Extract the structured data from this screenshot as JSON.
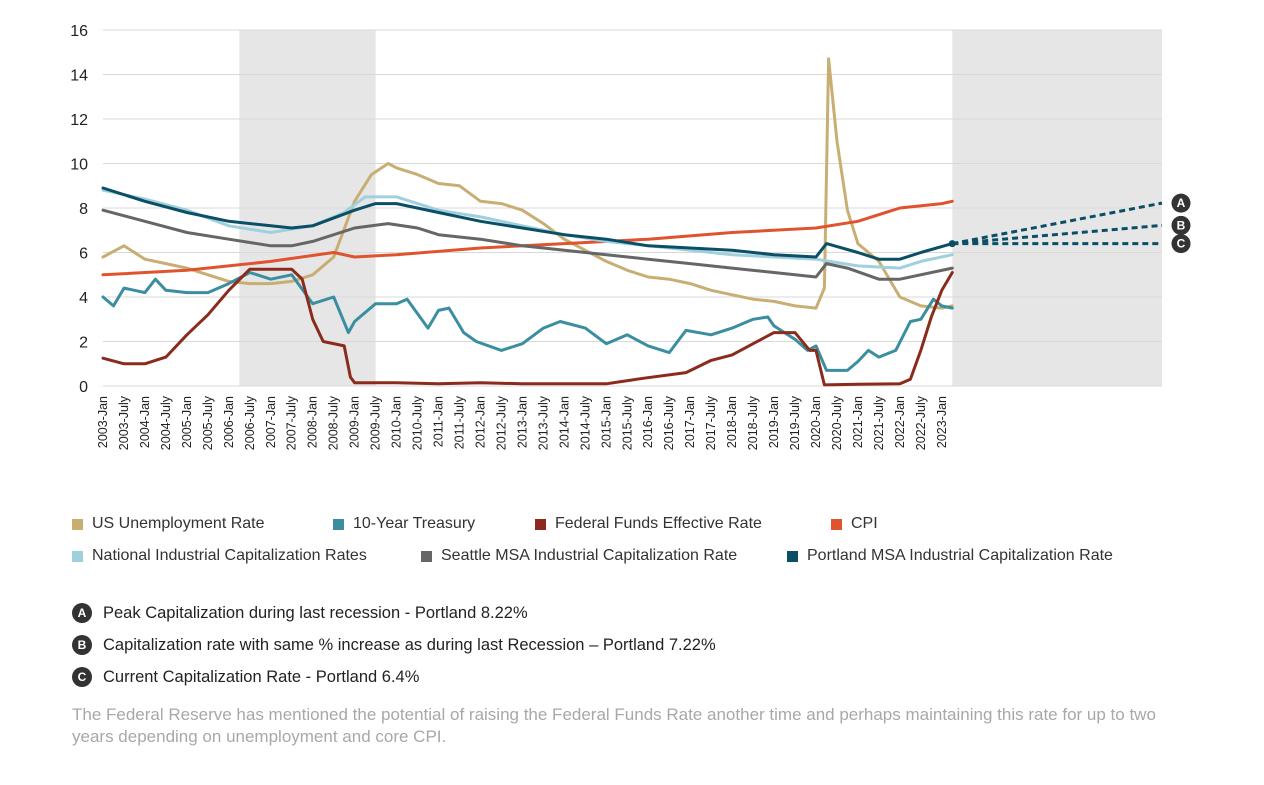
{
  "chart_data": {
    "type": "line",
    "title": "",
    "xlabel": "",
    "ylabel": "",
    "ylim": [
      0,
      16
    ],
    "yticks": [
      0,
      2,
      4,
      6,
      8,
      10,
      12,
      14,
      16
    ],
    "xlim": [
      2003.0,
      2028.25
    ],
    "x_tick_labels": [
      "2003-Jan",
      "2003-July",
      "2004-Jan",
      "2004-July",
      "2005-Jan",
      "2005-July",
      "2006-Jan",
      "2006-July",
      "2007-Jan",
      "2007-July",
      "2008-Jan",
      "2008-July",
      "2009-Jan",
      "2009-July",
      "2010-Jan",
      "2010-July",
      "2011-Jan",
      "2011-July",
      "2012-Jan",
      "2012-July",
      "2013-Jan",
      "2013-July",
      "2014-Jan",
      "2014-July",
      "2015-Jan",
      "2015-July",
      "2016-Jan",
      "2016-July",
      "2017-Jan",
      "2017-July",
      "2018-Jan",
      "2018-July",
      "2019-Jan",
      "2019-July",
      "2020-Jan",
      "2020-July",
      "2021-Jan",
      "2021-July",
      "2022-Jan",
      "2022-July",
      "2023-Jan"
    ],
    "recession_bands": [
      [
        2006.25,
        2009.5
      ],
      [
        2023.25,
        2028.25
      ]
    ],
    "grid": true,
    "legend_position": "bottom",
    "series": [
      {
        "name": "US Unemployment Rate",
        "color": "#c9ae74",
        "points": [
          [
            2003.0,
            5.8
          ],
          [
            2003.5,
            6.3
          ],
          [
            2004.0,
            5.7
          ],
          [
            2004.5,
            5.5
          ],
          [
            2005.0,
            5.3
          ],
          [
            2005.5,
            5.0
          ],
          [
            2006.0,
            4.7
          ],
          [
            2006.5,
            4.6
          ],
          [
            2007.0,
            4.6
          ],
          [
            2007.5,
            4.7
          ],
          [
            2008.0,
            5.0
          ],
          [
            2008.5,
            5.8
          ],
          [
            2009.0,
            8.3
          ],
          [
            2009.4,
            9.5
          ],
          [
            2009.8,
            10.0
          ],
          [
            2010.0,
            9.8
          ],
          [
            2010.5,
            9.5
          ],
          [
            2011.0,
            9.1
          ],
          [
            2011.5,
            9.0
          ],
          [
            2012.0,
            8.3
          ],
          [
            2012.5,
            8.2
          ],
          [
            2013.0,
            7.9
          ],
          [
            2013.5,
            7.3
          ],
          [
            2014.0,
            6.6
          ],
          [
            2014.5,
            6.1
          ],
          [
            2015.0,
            5.6
          ],
          [
            2015.5,
            5.2
          ],
          [
            2016.0,
            4.9
          ],
          [
            2016.5,
            4.8
          ],
          [
            2017.0,
            4.6
          ],
          [
            2017.5,
            4.3
          ],
          [
            2018.0,
            4.1
          ],
          [
            2018.5,
            3.9
          ],
          [
            2019.0,
            3.8
          ],
          [
            2019.5,
            3.6
          ],
          [
            2020.0,
            3.5
          ],
          [
            2020.2,
            4.4
          ],
          [
            2020.3,
            14.7
          ],
          [
            2020.5,
            11.0
          ],
          [
            2020.75,
            7.9
          ],
          [
            2021.0,
            6.4
          ],
          [
            2021.5,
            5.6
          ],
          [
            2022.0,
            4.0
          ],
          [
            2022.5,
            3.6
          ],
          [
            2023.0,
            3.5
          ],
          [
            2023.25,
            3.6
          ]
        ]
      },
      {
        "name": "10-Year Treasury",
        "color": "#3a8ea0",
        "points": [
          [
            2003.0,
            4.0
          ],
          [
            2003.25,
            3.6
          ],
          [
            2003.5,
            4.4
          ],
          [
            2003.75,
            4.3
          ],
          [
            2004.0,
            4.2
          ],
          [
            2004.25,
            4.8
          ],
          [
            2004.5,
            4.3
          ],
          [
            2005.0,
            4.2
          ],
          [
            2005.5,
            4.2
          ],
          [
            2006.0,
            4.6
          ],
          [
            2006.5,
            5.1
          ],
          [
            2007.0,
            4.8
          ],
          [
            2007.5,
            5.0
          ],
          [
            2008.0,
            3.7
          ],
          [
            2008.5,
            4.0
          ],
          [
            2008.85,
            2.4
          ],
          [
            2009.0,
            2.9
          ],
          [
            2009.5,
            3.7
          ],
          [
            2010.0,
            3.7
          ],
          [
            2010.25,
            3.9
          ],
          [
            2010.75,
            2.6
          ],
          [
            2011.0,
            3.4
          ],
          [
            2011.25,
            3.5
          ],
          [
            2011.6,
            2.4
          ],
          [
            2011.9,
            2.0
          ],
          [
            2012.5,
            1.6
          ],
          [
            2013.0,
            1.9
          ],
          [
            2013.5,
            2.6
          ],
          [
            2013.9,
            2.9
          ],
          [
            2014.5,
            2.6
          ],
          [
            2015.0,
            1.9
          ],
          [
            2015.5,
            2.3
          ],
          [
            2016.0,
            1.8
          ],
          [
            2016.5,
            1.5
          ],
          [
            2016.9,
            2.5
          ],
          [
            2017.5,
            2.3
          ],
          [
            2018.0,
            2.6
          ],
          [
            2018.5,
            3.0
          ],
          [
            2018.85,
            3.1
          ],
          [
            2019.0,
            2.7
          ],
          [
            2019.5,
            2.1
          ],
          [
            2019.8,
            1.6
          ],
          [
            2020.0,
            1.8
          ],
          [
            2020.25,
            0.7
          ],
          [
            2020.75,
            0.7
          ],
          [
            2021.0,
            1.1
          ],
          [
            2021.25,
            1.6
          ],
          [
            2021.5,
            1.3
          ],
          [
            2021.9,
            1.6
          ],
          [
            2022.25,
            2.9
          ],
          [
            2022.5,
            3.0
          ],
          [
            2022.8,
            3.9
          ],
          [
            2023.0,
            3.6
          ],
          [
            2023.25,
            3.5
          ]
        ]
      },
      {
        "name": "Federal Funds Effective Rate",
        "color": "#8b2b1e",
        "points": [
          [
            2003.0,
            1.25
          ],
          [
            2003.5,
            1.0
          ],
          [
            2004.0,
            1.0
          ],
          [
            2004.5,
            1.3
          ],
          [
            2005.0,
            2.3
          ],
          [
            2005.5,
            3.2
          ],
          [
            2006.0,
            4.3
          ],
          [
            2006.5,
            5.25
          ],
          [
            2007.0,
            5.25
          ],
          [
            2007.5,
            5.25
          ],
          [
            2007.75,
            4.8
          ],
          [
            2008.0,
            3.0
          ],
          [
            2008.25,
            2.0
          ],
          [
            2008.75,
            1.8
          ],
          [
            2008.9,
            0.4
          ],
          [
            2009.0,
            0.15
          ],
          [
            2010.0,
            0.15
          ],
          [
            2011.0,
            0.1
          ],
          [
            2012.0,
            0.15
          ],
          [
            2013.0,
            0.1
          ],
          [
            2014.0,
            0.1
          ],
          [
            2015.0,
            0.1
          ],
          [
            2015.9,
            0.35
          ],
          [
            2016.9,
            0.6
          ],
          [
            2017.5,
            1.15
          ],
          [
            2018.0,
            1.4
          ],
          [
            2018.5,
            1.9
          ],
          [
            2019.0,
            2.4
          ],
          [
            2019.5,
            2.4
          ],
          [
            2019.85,
            1.6
          ],
          [
            2020.0,
            1.6
          ],
          [
            2020.2,
            0.05
          ],
          [
            2021.0,
            0.08
          ],
          [
            2022.0,
            0.1
          ],
          [
            2022.25,
            0.3
          ],
          [
            2022.5,
            1.6
          ],
          [
            2022.75,
            3.1
          ],
          [
            2023.0,
            4.3
          ],
          [
            2023.25,
            5.1
          ]
        ]
      },
      {
        "name": "CPI",
        "color": "#e0532f",
        "points": [
          [
            2003.0,
            5.0
          ],
          [
            2005.0,
            5.2
          ],
          [
            2007.0,
            5.6
          ],
          [
            2008.5,
            6.0
          ],
          [
            2009.0,
            5.8
          ],
          [
            2010.0,
            5.9
          ],
          [
            2012.0,
            6.2
          ],
          [
            2014.0,
            6.4
          ],
          [
            2016.0,
            6.6
          ],
          [
            2018.0,
            6.9
          ],
          [
            2020.0,
            7.1
          ],
          [
            2021.0,
            7.4
          ],
          [
            2022.0,
            8.0
          ],
          [
            2023.0,
            8.2
          ],
          [
            2023.25,
            8.3
          ]
        ]
      },
      {
        "name": "National Industrial Capitalization Rates",
        "color": "#9fd0de",
        "points": [
          [
            2003.0,
            8.8
          ],
          [
            2004.0,
            8.4
          ],
          [
            2005.0,
            7.9
          ],
          [
            2006.0,
            7.2
          ],
          [
            2007.0,
            6.9
          ],
          [
            2008.0,
            7.2
          ],
          [
            2008.75,
            7.8
          ],
          [
            2009.25,
            8.5
          ],
          [
            2010.0,
            8.5
          ],
          [
            2011.0,
            7.9
          ],
          [
            2012.0,
            7.6
          ],
          [
            2013.0,
            7.2
          ],
          [
            2014.0,
            6.8
          ],
          [
            2015.0,
            6.5
          ],
          [
            2016.0,
            6.3
          ],
          [
            2017.0,
            6.1
          ],
          [
            2018.0,
            5.9
          ],
          [
            2019.0,
            5.8
          ],
          [
            2020.0,
            5.7
          ],
          [
            2021.0,
            5.4
          ],
          [
            2022.0,
            5.3
          ],
          [
            2022.5,
            5.6
          ],
          [
            2023.25,
            5.9
          ]
        ]
      },
      {
        "name": "Seattle MSA Industrial Capitalization Rate",
        "color": "#666666",
        "points": [
          [
            2003.0,
            7.9
          ],
          [
            2004.0,
            7.4
          ],
          [
            2005.0,
            6.9
          ],
          [
            2006.0,
            6.6
          ],
          [
            2007.0,
            6.3
          ],
          [
            2007.5,
            6.3
          ],
          [
            2008.0,
            6.5
          ],
          [
            2009.0,
            7.1
          ],
          [
            2009.8,
            7.3
          ],
          [
            2010.5,
            7.1
          ],
          [
            2011.0,
            6.8
          ],
          [
            2012.0,
            6.6
          ],
          [
            2013.0,
            6.3
          ],
          [
            2014.0,
            6.1
          ],
          [
            2015.0,
            5.9
          ],
          [
            2016.0,
            5.7
          ],
          [
            2017.0,
            5.5
          ],
          [
            2018.0,
            5.3
          ],
          [
            2019.0,
            5.1
          ],
          [
            2020.0,
            4.9
          ],
          [
            2020.25,
            5.5
          ],
          [
            2020.75,
            5.3
          ],
          [
            2021.5,
            4.8
          ],
          [
            2022.0,
            4.8
          ],
          [
            2023.25,
            5.3
          ]
        ]
      },
      {
        "name": "Portland MSA Industrial Capitalization Rate",
        "color": "#0b4f66",
        "points": [
          [
            2003.0,
            8.9
          ],
          [
            2004.0,
            8.3
          ],
          [
            2005.0,
            7.8
          ],
          [
            2006.0,
            7.4
          ],
          [
            2007.0,
            7.2
          ],
          [
            2007.5,
            7.1
          ],
          [
            2008.0,
            7.2
          ],
          [
            2009.0,
            7.9
          ],
          [
            2009.5,
            8.2
          ],
          [
            2010.0,
            8.2
          ],
          [
            2011.0,
            7.8
          ],
          [
            2012.0,
            7.4
          ],
          [
            2013.0,
            7.1
          ],
          [
            2014.0,
            6.8
          ],
          [
            2015.0,
            6.6
          ],
          [
            2016.0,
            6.3
          ],
          [
            2017.0,
            6.2
          ],
          [
            2018.0,
            6.1
          ],
          [
            2019.0,
            5.9
          ],
          [
            2020.0,
            5.8
          ],
          [
            2020.25,
            6.4
          ],
          [
            2021.0,
            6.0
          ],
          [
            2021.5,
            5.7
          ],
          [
            2022.0,
            5.7
          ],
          [
            2022.5,
            6.0
          ],
          [
            2023.25,
            6.4
          ]
        ]
      }
    ],
    "projections": [
      {
        "label": "A",
        "from": [
          2023.25,
          6.4
        ],
        "to": [
          2028.25,
          8.22
        ]
      },
      {
        "label": "B",
        "from": [
          2023.25,
          6.4
        ],
        "to": [
          2028.25,
          7.22
        ]
      },
      {
        "label": "C",
        "from": [
          2023.25,
          6.4
        ],
        "to": [
          2028.25,
          6.4
        ]
      }
    ]
  },
  "legend": {
    "row1": [
      {
        "label": "US Unemployment Rate",
        "color": "#c9ae74"
      },
      {
        "label": "10-Year Treasury",
        "color": "#3a8ea0"
      },
      {
        "label": "Federal Funds Effective Rate",
        "color": "#8b2b1e"
      },
      {
        "label": "CPI",
        "color": "#e0532f"
      }
    ],
    "row2": [
      {
        "label": "National Industrial Capitalization Rates",
        "color": "#9fd0de"
      },
      {
        "label": "Seattle MSA Industrial Capitalization Rate",
        "color": "#666666"
      },
      {
        "label": "Portland MSA Industrial Capitalization Rate",
        "color": "#0b4f66"
      }
    ]
  },
  "notes": [
    {
      "letter": "A",
      "text": "Peak Capitalization during last recession - Portland 8.22%"
    },
    {
      "letter": "B",
      "text": "Capitalization rate with same % increase as during last Recession – Portland 7.22%"
    },
    {
      "letter": "C",
      "text": "Current Capitalization Rate -  Portland 6.4%"
    }
  ],
  "footnote": "The Federal Reserve has mentioned the potential of raising the Federal Funds Rate another time and perhaps maintaining this rate for up to two years depending on unemployment and core CPI."
}
